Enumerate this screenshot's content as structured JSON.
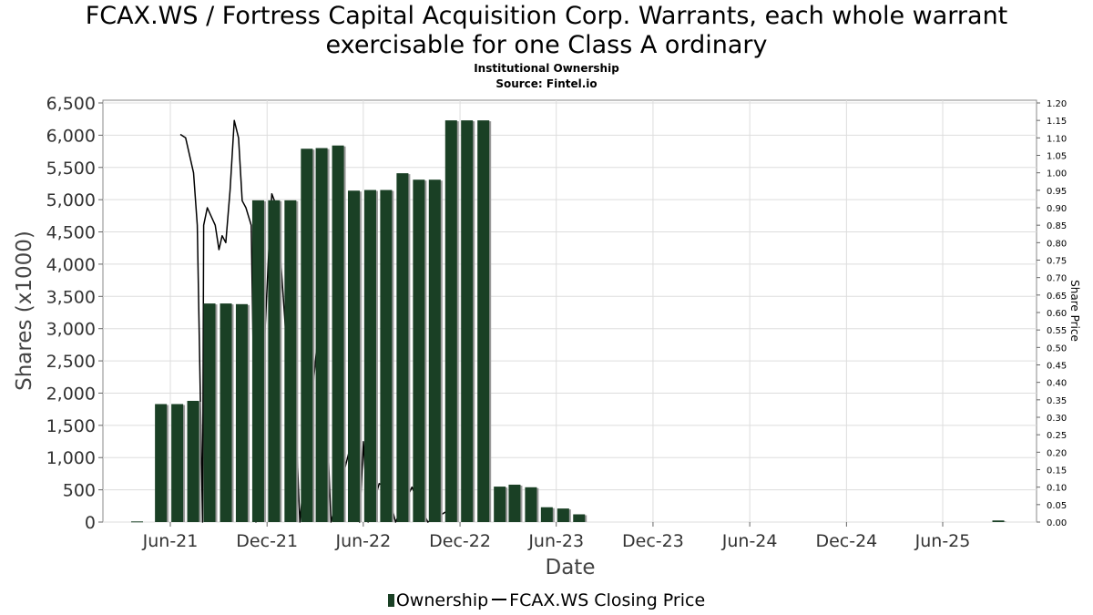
{
  "chart_data": {
    "type": "bar",
    "title_line1": "FCAX.WS / Fortress Capital Acquisition Corp. Warrants, each whole warrant",
    "title_line2": "exercisable for one Class A ordinary",
    "subtitle1": "Institutional Ownership",
    "subtitle2": "Source: Fintel.io",
    "xlabel": "Date",
    "ylabel": "Shares (x1000)",
    "ylabel_right": "Share Price",
    "x_tick_labels": [
      "Jun-21",
      "Dec-21",
      "Jun-22",
      "Dec-22",
      "Jun-23",
      "Dec-23",
      "Jun-24",
      "Dec-24",
      "Jun-25"
    ],
    "ylim_left": [
      0,
      6500
    ],
    "y_ticks_left": [
      "0",
      "500",
      "1,000",
      "1,500",
      "2,000",
      "2,500",
      "3,000",
      "3,500",
      "4,000",
      "4,500",
      "5,000",
      "5,500",
      "6,000",
      "6,500"
    ],
    "ylim_right": [
      0,
      1.2
    ],
    "y_ticks_right": [
      "0.00",
      "0.05",
      "0.10",
      "0.15",
      "0.20",
      "0.25",
      "0.30",
      "0.35",
      "0.40",
      "0.45",
      "0.50",
      "0.55",
      "0.60",
      "0.65",
      "0.70",
      "0.75",
      "0.80",
      "0.85",
      "0.90",
      "0.95",
      "1.00",
      "1.05",
      "1.10",
      "1.15",
      "1.20"
    ],
    "grid": true,
    "legend_position": "bottom-center",
    "series": [
      {
        "name": "Ownership",
        "color": "#1a4025",
        "kind": "bar",
        "points": [
          {
            "date": "2021-03-31",
            "value": 10
          },
          {
            "date": "2021-05-15",
            "value": 1830
          },
          {
            "date": "2021-06-15",
            "value": 1830
          },
          {
            "date": "2021-07-15",
            "value": 1880
          },
          {
            "date": "2021-08-15",
            "value": 3390
          },
          {
            "date": "2021-09-15",
            "value": 3390
          },
          {
            "date": "2021-10-15",
            "value": 3380
          },
          {
            "date": "2021-11-15",
            "value": 4990
          },
          {
            "date": "2021-12-15",
            "value": 4990
          },
          {
            "date": "2022-01-15",
            "value": 4990
          },
          {
            "date": "2022-02-15",
            "value": 5790
          },
          {
            "date": "2022-03-15",
            "value": 5800
          },
          {
            "date": "2022-04-15",
            "value": 5840
          },
          {
            "date": "2022-05-15",
            "value": 5140
          },
          {
            "date": "2022-06-15",
            "value": 5150
          },
          {
            "date": "2022-07-15",
            "value": 5150
          },
          {
            "date": "2022-08-15",
            "value": 5410
          },
          {
            "date": "2022-09-15",
            "value": 5310
          },
          {
            "date": "2022-10-15",
            "value": 5310
          },
          {
            "date": "2022-11-15",
            "value": 6230
          },
          {
            "date": "2022-12-15",
            "value": 6230
          },
          {
            "date": "2023-01-15",
            "value": 6230
          },
          {
            "date": "2023-02-15",
            "value": 550
          },
          {
            "date": "2023-03-15",
            "value": 580
          },
          {
            "date": "2023-04-15",
            "value": 540
          },
          {
            "date": "2023-05-15",
            "value": 230
          },
          {
            "date": "2023-06-15",
            "value": 210
          },
          {
            "date": "2023-07-15",
            "value": 120
          },
          {
            "date": "2025-09-15",
            "value": 25
          }
        ]
      },
      {
        "name": "FCAX.WS Closing Price",
        "color": "#000000",
        "kind": "line",
        "points": [
          {
            "date": "2021-06-20",
            "value": 1.11
          },
          {
            "date": "2021-06-30",
            "value": 1.1
          },
          {
            "date": "2021-07-15",
            "value": 1.0
          },
          {
            "date": "2021-07-22",
            "value": 0.85
          },
          {
            "date": "2021-08-01",
            "value": 0.0
          },
          {
            "date": "2021-08-03",
            "value": 0.85
          },
          {
            "date": "2021-08-10",
            "value": 0.9
          },
          {
            "date": "2021-08-25",
            "value": 0.85
          },
          {
            "date": "2021-09-01",
            "value": 0.78
          },
          {
            "date": "2021-09-07",
            "value": 0.82
          },
          {
            "date": "2021-09-14",
            "value": 0.8
          },
          {
            "date": "2021-09-22",
            "value": 0.95
          },
          {
            "date": "2021-09-30",
            "value": 1.15
          },
          {
            "date": "2021-10-08",
            "value": 1.1
          },
          {
            "date": "2021-10-15",
            "value": 0.92
          },
          {
            "date": "2021-10-22",
            "value": 0.9
          },
          {
            "date": "2021-11-01",
            "value": 0.85
          },
          {
            "date": "2021-11-10",
            "value": 0.0
          },
          {
            "date": "2021-12-04",
            "value": 0.77
          },
          {
            "date": "2021-12-10",
            "value": 0.94
          },
          {
            "date": "2021-12-20",
            "value": 0.9
          },
          {
            "date": "2022-01-05",
            "value": 0.55
          },
          {
            "date": "2022-01-20",
            "value": 0.45
          },
          {
            "date": "2022-02-01",
            "value": 0.0
          },
          {
            "date": "2022-03-05",
            "value": 0.5
          },
          {
            "date": "2022-03-20",
            "value": 0.45
          },
          {
            "date": "2022-04-01",
            "value": 0.0
          },
          {
            "date": "2022-05-10",
            "value": 0.23
          },
          {
            "date": "2022-05-25",
            "value": 0.0
          },
          {
            "date": "2022-06-01",
            "value": 0.23
          },
          {
            "date": "2022-06-10",
            "value": 0.0
          },
          {
            "date": "2022-07-01",
            "value": 0.11
          },
          {
            "date": "2022-07-15",
            "value": 0.1
          },
          {
            "date": "2022-08-01",
            "value": 0.0
          },
          {
            "date": "2022-09-01",
            "value": 0.1
          },
          {
            "date": "2022-09-15",
            "value": 0.05
          },
          {
            "date": "2022-10-01",
            "value": 0.0
          },
          {
            "date": "2022-10-25",
            "value": 0.02
          },
          {
            "date": "2022-11-05",
            "value": 0.03
          },
          {
            "date": "2022-11-15",
            "value": 0.02
          }
        ]
      }
    ]
  }
}
